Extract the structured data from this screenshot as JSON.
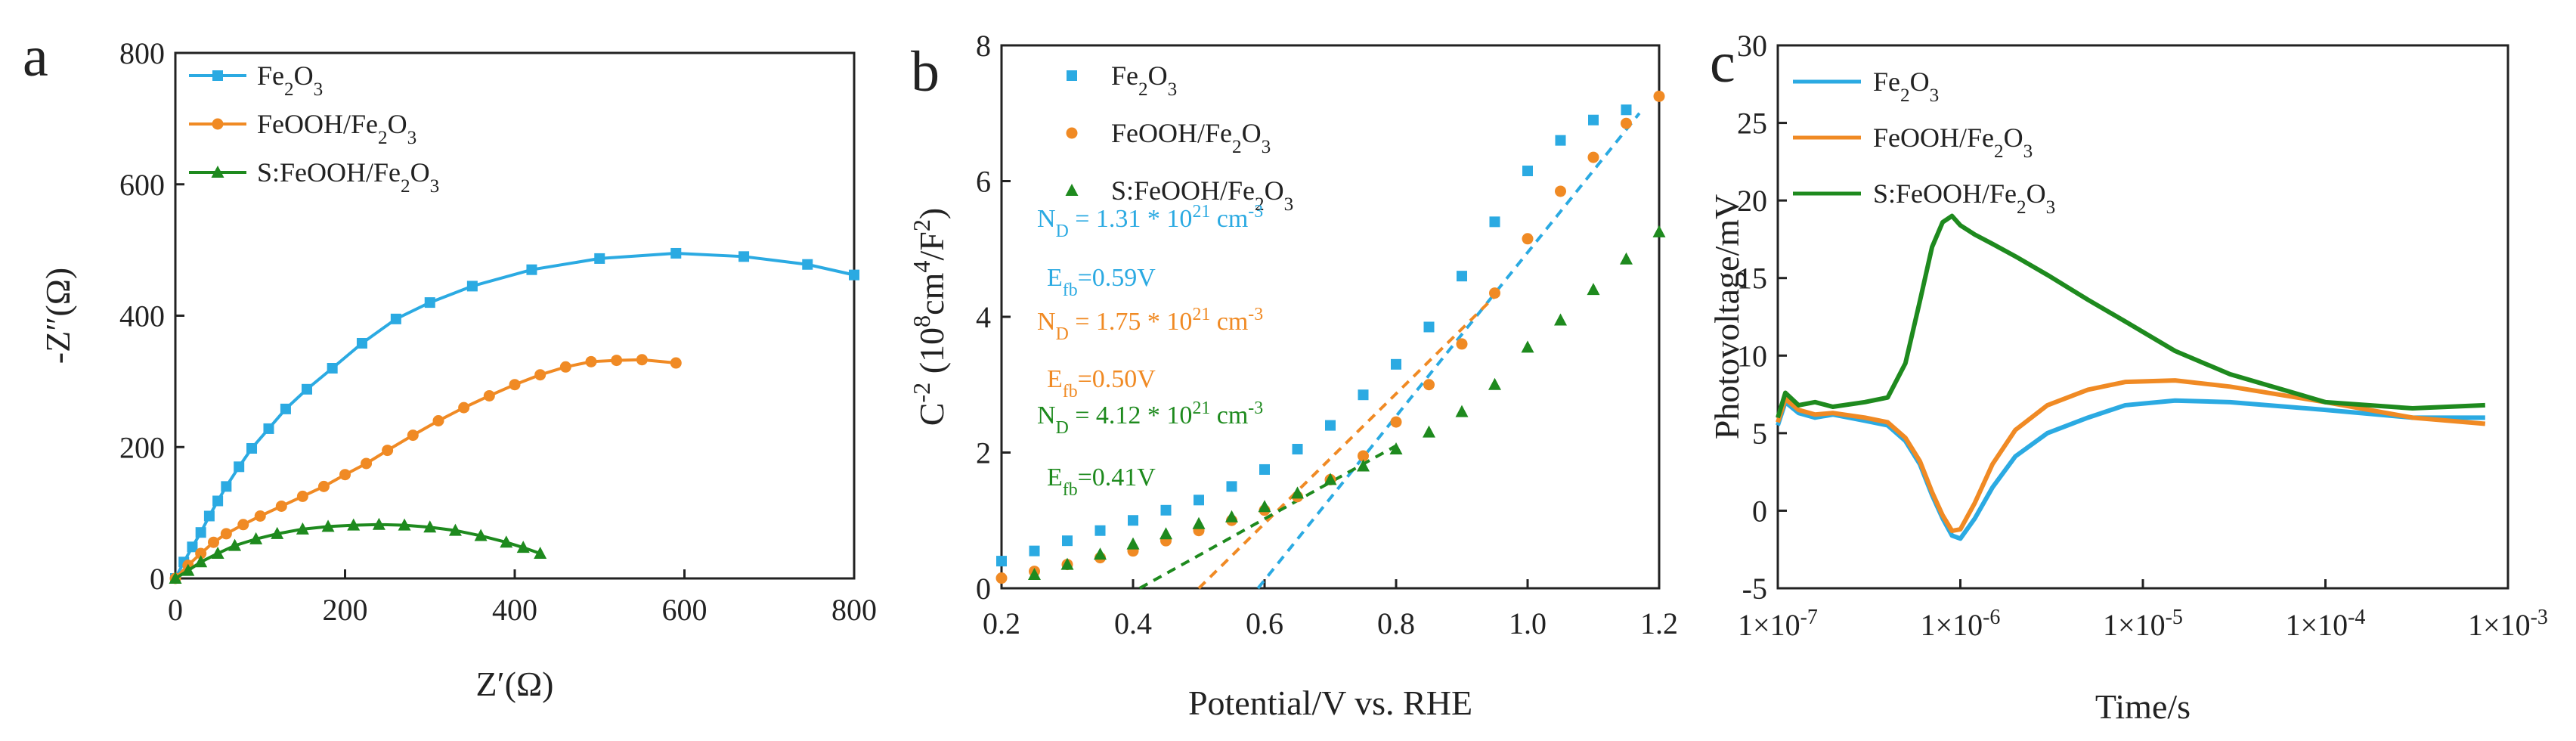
{
  "colors": {
    "fe2o3": "#2baae2",
    "feooh": "#f08a24",
    "sfeooh": "#1e8a1e"
  },
  "chart_data": [
    {
      "id": "a",
      "type": "scatter",
      "panel_label": "a",
      "xlabel": "Z′(Ω)",
      "ylabel": "-Z″(Ω)",
      "xlim": [
        0,
        800
      ],
      "ylim": [
        0,
        800
      ],
      "xticks": [
        "0",
        "200",
        "400",
        "600",
        "800"
      ],
      "yticks": [
        "0",
        "200",
        "400",
        "600",
        "800"
      ],
      "legend": {
        "position": "top-left",
        "entries": [
          "Fe₂O₃",
          "FeOOH/Fe₂O₃",
          "S:FeOOH/Fe₂O₃"
        ]
      },
      "series": [
        {
          "name": "Fe₂O₃",
          "marker": "square",
          "color_key": "fe2o3",
          "x": [
            0,
            10,
            20,
            30,
            40,
            50,
            60,
            75,
            90,
            110,
            130,
            155,
            185,
            220,
            260,
            300,
            350,
            420,
            500,
            590,
            670,
            745,
            800
          ],
          "y": [
            0,
            25,
            48,
            70,
            95,
            118,
            140,
            170,
            198,
            228,
            258,
            288,
            320,
            358,
            395,
            420,
            445,
            470,
            487,
            495,
            490,
            478,
            462
          ]
        },
        {
          "name": "FeOOH/Fe₂O₃",
          "marker": "circle",
          "color_key": "feooh",
          "x": [
            0,
            15,
            30,
            45,
            60,
            80,
            100,
            125,
            150,
            175,
            200,
            225,
            250,
            280,
            310,
            340,
            370,
            400,
            430,
            460,
            490,
            520,
            550,
            590
          ],
          "y": [
            0,
            20,
            38,
            55,
            68,
            82,
            95,
            110,
            125,
            140,
            158,
            175,
            195,
            218,
            240,
            260,
            278,
            295,
            310,
            322,
            330,
            332,
            333,
            328
          ]
        },
        {
          "name": "S:FeOOH/Fe₂O₃",
          "marker": "triangle",
          "color_key": "sfeooh",
          "x": [
            0,
            15,
            30,
            50,
            70,
            95,
            120,
            150,
            180,
            210,
            240,
            270,
            300,
            330,
            360,
            390,
            410,
            430
          ],
          "y": [
            0,
            12,
            25,
            38,
            50,
            60,
            68,
            75,
            79,
            81,
            82,
            81,
            78,
            73,
            65,
            55,
            47,
            38
          ]
        }
      ]
    },
    {
      "id": "b",
      "type": "scatter",
      "panel_label": "b",
      "xlabel": "Potential/V vs. RHE",
      "ylabel": "C⁻² (10⁸cm⁴/F²)",
      "xlim": [
        0.2,
        1.2
      ],
      "ylim": [
        0,
        8
      ],
      "xticks": [
        "0.2",
        "0.4",
        "0.6",
        "0.8",
        "1.0",
        "1.2"
      ],
      "yticks": [
        "0",
        "2",
        "4",
        "6",
        "8"
      ],
      "legend": {
        "position": "top-left",
        "entries": [
          "Fe₂O₃",
          "FeOOH/Fe₂O₃",
          "S:FeOOH/Fe₂O₃"
        ]
      },
      "annotations": [
        {
          "text": "N_D = 1.31 * 10^21 cm^-3",
          "color_key": "fe2o3"
        },
        {
          "text": "E_fb=0.59V",
          "color_key": "fe2o3"
        },
        {
          "text": "N_D = 1.75 * 10^21 cm^-3",
          "color_key": "feooh"
        },
        {
          "text": "E_fb=0.50V",
          "color_key": "feooh"
        },
        {
          "text": "N_D = 4.12 * 10^21 cm^-3",
          "color_key": "sfeooh"
        },
        {
          "text": "E_fb=0.41V",
          "color_key": "sfeooh"
        }
      ],
      "fit_lines": [
        {
          "color_key": "fe2o3",
          "x": [
            0.59,
            1.17
          ],
          "y": [
            0,
            7.0
          ]
        },
        {
          "color_key": "feooh",
          "x": [
            0.5,
            0.95
          ],
          "y": [
            0,
            4.3
          ]
        },
        {
          "color_key": "sfeooh",
          "x": [
            0.41,
            0.8
          ],
          "y": [
            0,
            2.1
          ]
        }
      ],
      "series": [
        {
          "name": "Fe₂O₃",
          "marker": "square",
          "color_key": "fe2o3",
          "x": [
            0.2,
            0.25,
            0.3,
            0.35,
            0.4,
            0.45,
            0.5,
            0.55,
            0.6,
            0.65,
            0.7,
            0.75,
            0.8,
            0.85,
            0.9,
            0.95,
            1.0,
            1.05,
            1.1,
            1.15
          ],
          "y": [
            0.4,
            0.55,
            0.7,
            0.85,
            1.0,
            1.15,
            1.3,
            1.5,
            1.75,
            2.05,
            2.4,
            2.85,
            3.3,
            3.85,
            4.6,
            5.4,
            6.15,
            6.6,
            6.9,
            7.05
          ]
        },
        {
          "name": "FeOOH/Fe₂O₃",
          "marker": "circle",
          "color_key": "feooh",
          "x": [
            0.2,
            0.25,
            0.3,
            0.35,
            0.4,
            0.45,
            0.5,
            0.55,
            0.6,
            0.65,
            0.7,
            0.75,
            0.8,
            0.85,
            0.9,
            0.95,
            1.0,
            1.05,
            1.1,
            1.15,
            1.2
          ],
          "y": [
            0.15,
            0.25,
            0.35,
            0.45,
            0.55,
            0.7,
            0.85,
            1.0,
            1.15,
            1.35,
            1.6,
            1.95,
            2.45,
            3.0,
            3.6,
            4.35,
            5.15,
            5.85,
            6.35,
            6.85,
            7.25
          ]
        },
        {
          "name": "S:FeOOH/Fe₂O₃",
          "marker": "triangle",
          "color_key": "sfeooh",
          "x": [
            0.25,
            0.3,
            0.35,
            0.4,
            0.45,
            0.5,
            0.55,
            0.6,
            0.65,
            0.7,
            0.75,
            0.8,
            0.85,
            0.9,
            0.95,
            1.0,
            1.05,
            1.1,
            1.15,
            1.2
          ],
          "y": [
            0.2,
            0.35,
            0.5,
            0.65,
            0.8,
            0.95,
            1.05,
            1.2,
            1.4,
            1.6,
            1.8,
            2.05,
            2.3,
            2.6,
            3.0,
            3.55,
            3.95,
            4.4,
            4.85,
            5.25
          ]
        }
      ]
    },
    {
      "id": "c",
      "type": "line",
      "panel_label": "c",
      "xlabel": "Time/s",
      "ylabel": "Photovoltage/mV",
      "xscale": "log",
      "xlim": [
        1e-07,
        0.001
      ],
      "ylim": [
        -5,
        30
      ],
      "xticks": [
        "1×10⁻⁷",
        "1×10⁻⁶",
        "1×10⁻⁵",
        "1×10⁻⁴",
        "1×10⁻³"
      ],
      "yticks": [
        "-5",
        "0",
        "5",
        "10",
        "15",
        "20",
        "25",
        "30"
      ],
      "legend": {
        "position": "top-left",
        "entries": [
          "Fe₂O₃",
          "FeOOH/Fe₂O₃",
          "S:FeOOH/Fe₂O₃"
        ]
      },
      "series": [
        {
          "name": "Fe₂O₃",
          "color_key": "fe2o3",
          "x": [
            1e-07,
            1.1e-07,
            1.3e-07,
            1.6e-07,
            2e-07,
            3e-07,
            4e-07,
            5e-07,
            6e-07,
            7e-07,
            8e-07,
            9e-07,
            1e-06,
            1.2e-06,
            1.5e-06,
            2e-06,
            3e-06,
            5e-06,
            8e-06,
            1.5e-05,
            3e-05,
            0.0001,
            0.0003,
            0.00075
          ],
          "y": [
            5.5,
            7.0,
            6.3,
            6.0,
            6.2,
            5.8,
            5.5,
            4.5,
            3.0,
            1.0,
            -0.5,
            -1.6,
            -1.8,
            -0.5,
            1.5,
            3.5,
            5.0,
            6.0,
            6.8,
            7.1,
            7.0,
            6.5,
            6.0,
            6.0
          ]
        },
        {
          "name": "FeOOH/Fe₂O₃",
          "color_key": "feooh",
          "x": [
            1e-07,
            1.1e-07,
            1.3e-07,
            1.6e-07,
            2e-07,
            3e-07,
            4e-07,
            5e-07,
            6e-07,
            7e-07,
            8e-07,
            9e-07,
            1e-06,
            1.2e-06,
            1.5e-06,
            2e-06,
            3e-06,
            5e-06,
            8e-06,
            1.5e-05,
            3e-05,
            0.0001,
            0.0003,
            0.00075
          ],
          "y": [
            5.7,
            7.2,
            6.5,
            6.2,
            6.3,
            6.0,
            5.7,
            4.7,
            3.2,
            1.2,
            -0.3,
            -1.3,
            -1.2,
            0.5,
            3.0,
            5.2,
            6.8,
            7.8,
            8.3,
            8.4,
            8.0,
            7.0,
            6.0,
            5.6
          ]
        },
        {
          "name": "S:FeOOH/Fe₂O₃",
          "color_key": "sfeooh",
          "x": [
            1e-07,
            1.1e-07,
            1.3e-07,
            1.6e-07,
            2e-07,
            3e-07,
            4e-07,
            5e-07,
            6e-07,
            7e-07,
            8e-07,
            9e-07,
            1e-06,
            1.2e-06,
            1.5e-06,
            2e-06,
            3e-06,
            5e-06,
            8e-06,
            1.5e-05,
            3e-05,
            0.0001,
            0.0003,
            0.00075
          ],
          "y": [
            6.0,
            7.6,
            6.8,
            7.0,
            6.7,
            7.0,
            7.3,
            9.5,
            13.5,
            17.0,
            18.6,
            19.0,
            18.4,
            17.8,
            17.2,
            16.4,
            15.2,
            13.6,
            12.2,
            10.3,
            8.8,
            7.0,
            6.6,
            6.8
          ]
        }
      ]
    }
  ]
}
